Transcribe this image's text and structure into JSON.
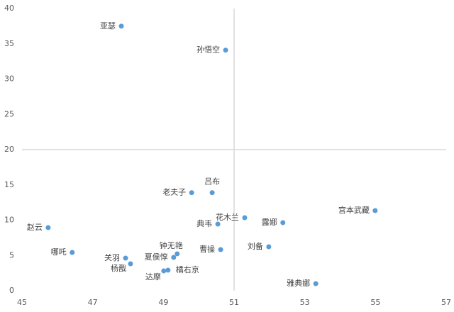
{
  "chart_data": {
    "type": "scatter",
    "xlim": [
      45,
      57
    ],
    "xticks": [
      45,
      47,
      49,
      51,
      53,
      55,
      57
    ],
    "ylim": [
      0,
      40
    ],
    "yticks": [
      0,
      5,
      10,
      15,
      20,
      25,
      30,
      35,
      40
    ],
    "crosshair": [
      51,
      20
    ],
    "color": "#5b9bd5",
    "labels": [
      "亚瑟",
      "孙悟空",
      "老夫子",
      "吕布",
      "花木兰",
      "典韦",
      "露娜",
      "宫本武藏",
      "赵云",
      "刘备",
      "曹操",
      "钟无艳",
      "夏侯惇",
      "哪吒",
      "关羽",
      "杨戬",
      "达摩",
      "橘右京",
      "雅典娜"
    ],
    "x": [
      47.81,
      50.76,
      49.8,
      50.38,
      51.3,
      50.54,
      52.38,
      54.99,
      45.74,
      51.98,
      50.62,
      49.39,
      49.29,
      46.42,
      47.93,
      48.07,
      49.01,
      49.13,
      53.31
    ],
    "values": [
      37.5,
      34.1,
      13.9,
      13.9,
      10.35,
      9.45,
      9.65,
      11.36,
      8.94,
      6.23,
      5.83,
      5.23,
      4.72,
      5.43,
      4.62,
      3.82,
      2.81,
      2.91,
      1.0
    ]
  }
}
